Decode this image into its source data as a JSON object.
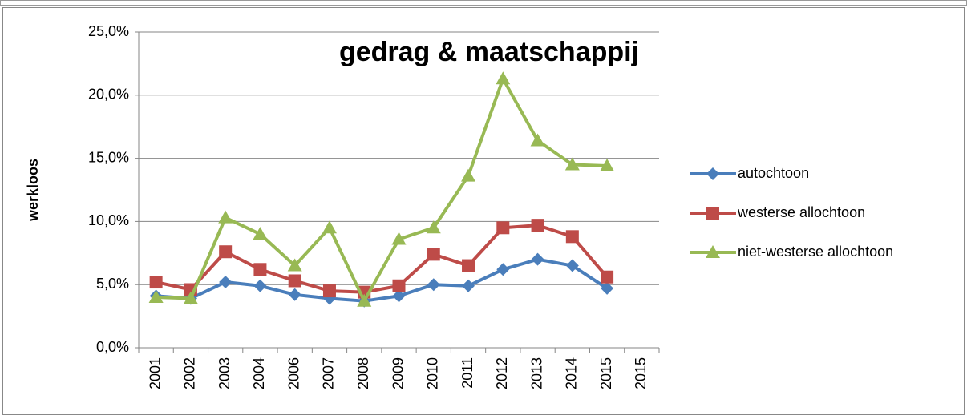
{
  "chart_data": {
    "type": "line",
    "title": "gedrag & maatschappij",
    "y_label": "werkloos",
    "categories": [
      "2001",
      "2002",
      "2003",
      "2004",
      "2006",
      "2007",
      "2008",
      "2009",
      "2010",
      "2011",
      "2012",
      "2013",
      "2014",
      "2015",
      "2015"
    ],
    "series": [
      {
        "name": "autochtoon",
        "color": "#4a7ebb",
        "marker": "diamond",
        "values": [
          4.1,
          3.9,
          5.2,
          4.9,
          4.2,
          3.9,
          3.7,
          4.1,
          5.0,
          4.9,
          6.2,
          7.0,
          6.5,
          4.7,
          null
        ]
      },
      {
        "name": "westerse allochtoon",
        "color": "#be4b48",
        "marker": "square",
        "values": [
          5.2,
          4.6,
          7.6,
          6.2,
          5.3,
          4.5,
          4.4,
          4.9,
          7.4,
          6.5,
          9.5,
          9.7,
          8.8,
          5.6,
          null
        ]
      },
      {
        "name": "niet-westerse allochtoon",
        "color": "#98b954",
        "marker": "triangle",
        "values": [
          4.0,
          3.9,
          10.3,
          9.0,
          6.5,
          9.5,
          3.7,
          8.6,
          9.5,
          13.6,
          21.3,
          16.4,
          14.5,
          14.4,
          null
        ]
      }
    ],
    "ylim": [
      0,
      25
    ],
    "yticks": [
      {
        "value": 0,
        "label": "0,0%"
      },
      {
        "value": 5,
        "label": "5,0%"
      },
      {
        "value": 10,
        "label": "10,0%"
      },
      {
        "value": 15,
        "label": "15,0%"
      },
      {
        "value": 20,
        "label": "20,0%"
      },
      {
        "value": 25,
        "label": "25,0%"
      }
    ],
    "grid": true,
    "legend": "right"
  }
}
